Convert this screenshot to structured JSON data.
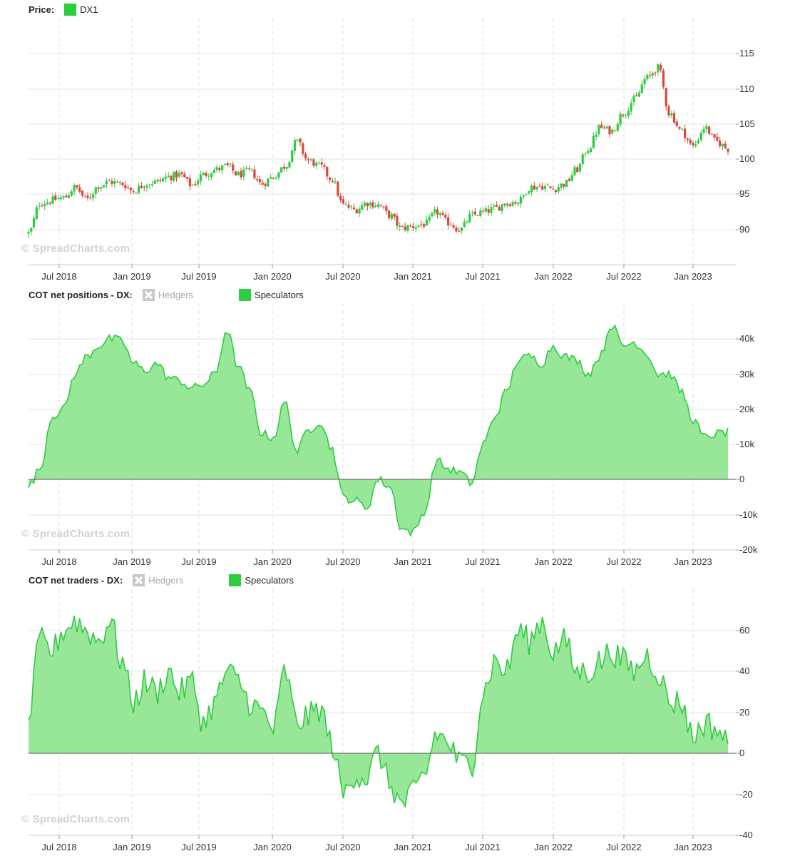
{
  "watermark": "© SpreadCharts.com",
  "colors": {
    "speculators": "#2ecc40",
    "speculators_fill": "#98e698",
    "up": "#2ecc40",
    "down": "#d64a3c",
    "hedgers_disabled": "#c8c8c8"
  },
  "x_axis_labels": [
    "Jul 2018",
    "Jan 2019",
    "Jul 2019",
    "Jan 2020",
    "Jul 2020",
    "Jan 2021",
    "Jul 2021",
    "Jan 2022",
    "Jul 2022",
    "Jan 2023"
  ],
  "panels": {
    "price": {
      "title": "Price:",
      "legend": [
        {
          "label": "DX1",
          "color": "#2ecc40",
          "enabled": true
        }
      ]
    },
    "positions": {
      "title": "COT net positions - DX:",
      "legend": [
        {
          "label": "Hedgers",
          "enabled": false
        },
        {
          "label": "Speculators",
          "color": "#2ecc40",
          "enabled": true
        }
      ]
    },
    "traders": {
      "title": "COT net traders - DX:",
      "legend": [
        {
          "label": "Hedgers",
          "enabled": false
        },
        {
          "label": "Speculators",
          "color": "#2ecc40",
          "enabled": true
        }
      ]
    }
  },
  "chart_data": [
    {
      "type": "candlestick",
      "series": [
        {
          "name": "DX1"
        }
      ],
      "x_start": "2018-04",
      "x_end": "2023-04",
      "ylim": [
        86,
        118
      ],
      "yticks": [
        "90",
        "95",
        "100",
        "105",
        "110",
        "115"
      ],
      "close_path": [
        [
          "2018-04",
          89.5
        ],
        [
          "2018-05",
          93.8
        ],
        [
          "2018-07",
          94.5
        ],
        [
          "2018-08",
          96.0
        ],
        [
          "2018-09",
          94.3
        ],
        [
          "2018-10",
          96.2
        ],
        [
          "2018-11",
          96.8
        ],
        [
          "2018-12",
          96.5
        ],
        [
          "2019-01",
          95.5
        ],
        [
          "2019-02",
          96.5
        ],
        [
          "2019-03",
          96.8
        ],
        [
          "2019-04",
          97.5
        ],
        [
          "2019-05",
          97.8
        ],
        [
          "2019-06",
          96.3
        ],
        [
          "2019-07",
          97.8
        ],
        [
          "2019-08",
          98.5
        ],
        [
          "2019-09",
          99.0
        ],
        [
          "2019-10",
          97.8
        ],
        [
          "2019-11",
          98.3
        ],
        [
          "2019-12",
          96.5
        ],
        [
          "2020-01",
          97.5
        ],
        [
          "2020-02",
          99.0
        ],
        [
          "2020-03",
          102.5
        ],
        [
          "2020-04",
          99.8
        ],
        [
          "2020-05",
          99.0
        ],
        [
          "2020-06",
          97.2
        ],
        [
          "2020-07",
          93.5
        ],
        [
          "2020-08",
          92.8
        ],
        [
          "2020-09",
          93.8
        ],
        [
          "2020-10",
          93.5
        ],
        [
          "2020-11",
          92.0
        ],
        [
          "2020-12",
          90.2
        ],
        [
          "2021-01",
          90.5
        ],
        [
          "2021-02",
          90.8
        ],
        [
          "2021-03",
          92.5
        ],
        [
          "2021-04",
          91.0
        ],
        [
          "2021-05",
          90.0
        ],
        [
          "2021-06",
          92.0
        ],
        [
          "2021-07",
          92.5
        ],
        [
          "2021-08",
          93.0
        ],
        [
          "2021-09",
          93.8
        ],
        [
          "2021-10",
          94.0
        ],
        [
          "2021-11",
          96.0
        ],
        [
          "2021-12",
          96.2
        ],
        [
          "2022-01",
          95.8
        ],
        [
          "2022-02",
          96.5
        ],
        [
          "2022-03",
          98.5
        ],
        [
          "2022-04",
          101.5
        ],
        [
          "2022-05",
          104.5
        ],
        [
          "2022-06",
          104.0
        ],
        [
          "2022-07",
          106.5
        ],
        [
          "2022-08",
          108.5
        ],
        [
          "2022-09",
          111.5
        ],
        [
          "2022-10",
          113.0
        ],
        [
          "2022-11",
          106.5
        ],
        [
          "2022-12",
          104.0
        ],
        [
          "2023-01",
          101.8
        ],
        [
          "2023-02",
          104.5
        ],
        [
          "2023-03",
          102.5
        ],
        [
          "2023-04",
          101.5
        ]
      ]
    },
    {
      "type": "area",
      "series": [
        {
          "name": "Speculators"
        }
      ],
      "x_start": "2018-04",
      "x_end": "2023-04",
      "ylim": [
        -20000,
        50000
      ],
      "yticks": [
        "-20k",
        "-10k",
        "0",
        "10k",
        "20k",
        "30k",
        "40k"
      ],
      "points": [
        [
          "2018-04",
          -2000
        ],
        [
          "2018-05",
          3000
        ],
        [
          "2018-06",
          18000
        ],
        [
          "2018-07",
          20000
        ],
        [
          "2018-08",
          30000
        ],
        [
          "2018-09",
          35000
        ],
        [
          "2018-10",
          38000
        ],
        [
          "2018-11",
          40000
        ],
        [
          "2018-12",
          39500
        ],
        [
          "2019-01",
          33000
        ],
        [
          "2019-02",
          31000
        ],
        [
          "2019-03",
          33000
        ],
        [
          "2019-04",
          29000
        ],
        [
          "2019-05",
          28000
        ],
        [
          "2019-06",
          26000
        ],
        [
          "2019-07",
          27000
        ],
        [
          "2019-08",
          30000
        ],
        [
          "2019-09",
          42500
        ],
        [
          "2019-10",
          32000
        ],
        [
          "2019-11",
          25000
        ],
        [
          "2019-12",
          13000
        ],
        [
          "2020-01",
          12000
        ],
        [
          "2020-02",
          22000
        ],
        [
          "2020-03",
          8000
        ],
        [
          "2020-04",
          14000
        ],
        [
          "2020-05",
          16500
        ],
        [
          "2020-06",
          9000
        ],
        [
          "2020-07",
          -5000
        ],
        [
          "2020-08",
          -6000
        ],
        [
          "2020-09",
          -8000
        ],
        [
          "2020-10",
          0
        ],
        [
          "2020-11",
          -2000
        ],
        [
          "2020-12",
          -14000
        ],
        [
          "2021-01",
          -15000
        ],
        [
          "2021-02",
          -9000
        ],
        [
          "2021-03",
          5500
        ],
        [
          "2021-04",
          3000
        ],
        [
          "2021-05",
          2000
        ],
        [
          "2021-06",
          -1000
        ],
        [
          "2021-07",
          10000
        ],
        [
          "2021-08",
          18000
        ],
        [
          "2021-09",
          25000
        ],
        [
          "2021-10",
          34000
        ],
        [
          "2021-11",
          35000
        ],
        [
          "2021-12",
          33000
        ],
        [
          "2022-01",
          38000
        ],
        [
          "2022-02",
          35000
        ],
        [
          "2022-03",
          34000
        ],
        [
          "2022-04",
          30000
        ],
        [
          "2022-05",
          35000
        ],
        [
          "2022-06",
          44000
        ],
        [
          "2022-07",
          38000
        ],
        [
          "2022-08",
          39000
        ],
        [
          "2022-09",
          36000
        ],
        [
          "2022-10",
          30000
        ],
        [
          "2022-11",
          30000
        ],
        [
          "2022-12",
          25000
        ],
        [
          "2023-01",
          17000
        ],
        [
          "2023-02",
          12000
        ],
        [
          "2023-03",
          13000
        ],
        [
          "2023-04",
          13500
        ]
      ]
    },
    {
      "type": "area",
      "series": [
        {
          "name": "Speculators"
        }
      ],
      "x_start": "2018-04",
      "x_end": "2023-04",
      "ylim": [
        -40,
        80
      ],
      "yticks": [
        "-40",
        "-20",
        "0",
        "20",
        "40",
        "60"
      ],
      "points": [
        [
          "2018-04",
          18
        ],
        [
          "2018-05",
          55
        ],
        [
          "2018-06",
          50
        ],
        [
          "2018-07",
          60
        ],
        [
          "2018-08",
          65
        ],
        [
          "2018-09",
          60
        ],
        [
          "2018-10",
          55
        ],
        [
          "2018-11",
          65
        ],
        [
          "2018-12",
          45
        ],
        [
          "2019-01",
          25
        ],
        [
          "2019-02",
          35
        ],
        [
          "2019-03",
          30
        ],
        [
          "2019-04",
          40
        ],
        [
          "2019-05",
          30
        ],
        [
          "2019-06",
          35
        ],
        [
          "2019-07",
          15
        ],
        [
          "2019-08",
          25
        ],
        [
          "2019-09",
          40
        ],
        [
          "2019-10",
          35
        ],
        [
          "2019-11",
          25
        ],
        [
          "2019-12",
          20
        ],
        [
          "2020-01",
          12
        ],
        [
          "2020-02",
          40
        ],
        [
          "2020-03",
          15
        ],
        [
          "2020-04",
          18
        ],
        [
          "2020-05",
          22
        ],
        [
          "2020-06",
          5
        ],
        [
          "2020-07",
          -20
        ],
        [
          "2020-08",
          -10
        ],
        [
          "2020-09",
          -12
        ],
        [
          "2020-10",
          0
        ],
        [
          "2020-11",
          -15
        ],
        [
          "2020-12",
          -25
        ],
        [
          "2021-01",
          -20
        ],
        [
          "2021-02",
          -10
        ],
        [
          "2021-03",
          10
        ],
        [
          "2021-04",
          5
        ],
        [
          "2021-05",
          -5
        ],
        [
          "2021-06",
          -5
        ],
        [
          "2021-07",
          30
        ],
        [
          "2021-08",
          45
        ],
        [
          "2021-09",
          40
        ],
        [
          "2021-10",
          60
        ],
        [
          "2021-11",
          55
        ],
        [
          "2021-12",
          65
        ],
        [
          "2022-01",
          50
        ],
        [
          "2022-02",
          55
        ],
        [
          "2022-03",
          40
        ],
        [
          "2022-04",
          40
        ],
        [
          "2022-05",
          45
        ],
        [
          "2022-06",
          50
        ],
        [
          "2022-07",
          45
        ],
        [
          "2022-08",
          40
        ],
        [
          "2022-09",
          48
        ],
        [
          "2022-10",
          40
        ],
        [
          "2022-11",
          25
        ],
        [
          "2022-12",
          25
        ],
        [
          "2023-01",
          8
        ],
        [
          "2023-02",
          15
        ],
        [
          "2023-03",
          12
        ],
        [
          "2023-04",
          5
        ]
      ]
    }
  ]
}
